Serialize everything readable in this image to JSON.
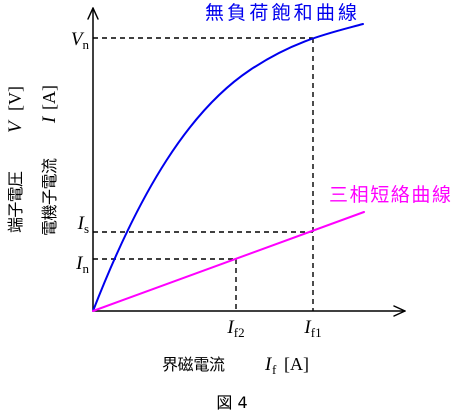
{
  "curves": {
    "no_load_label": "無負荷飽和曲線",
    "short_circuit_label": "三相短絡曲線"
  },
  "y_axis": {
    "voltage_label": {
      "text": "端子電圧",
      "symbol": "V",
      "unit": "[V]"
    },
    "current_label": {
      "text": "電機子電流",
      "symbol": "I",
      "unit": "[A]"
    },
    "ticks": [
      {
        "main": "V",
        "sub": "n"
      },
      {
        "main": "I",
        "sub": "s"
      },
      {
        "main": "I",
        "sub": "n"
      }
    ]
  },
  "x_axis": {
    "label": {
      "text": "界磁電流",
      "symbol": "I",
      "sub": "f",
      "unit": "[A]"
    },
    "ticks": [
      {
        "main": "I",
        "sub": "f2"
      },
      {
        "main": "I",
        "sub": "f1"
      }
    ]
  },
  "caption": "図 4",
  "colors": {
    "no_load": "#0000ee",
    "short_circuit": "#ff00ff",
    "axes": "#000000"
  }
}
